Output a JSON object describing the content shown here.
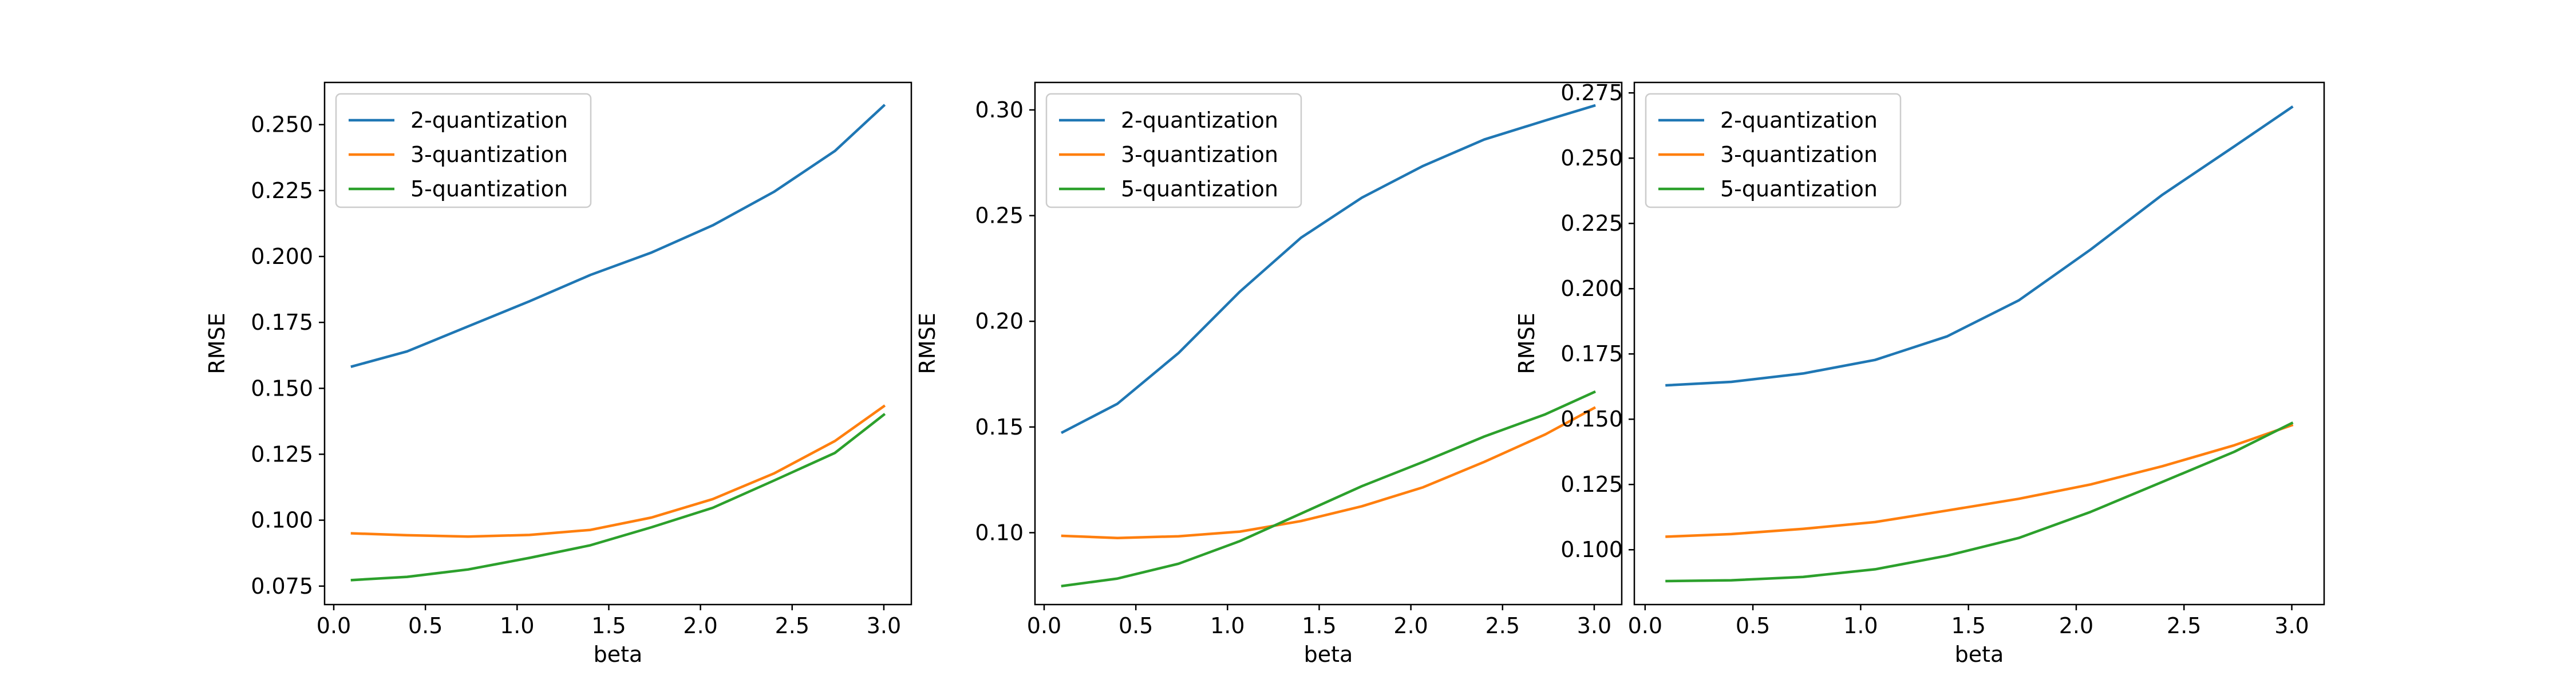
{
  "chart_data": [
    {
      "type": "line",
      "xlabel": "beta",
      "ylabel": "RMSE",
      "xlim": [
        -0.05,
        3.15
      ],
      "ylim": [
        0.068,
        0.266
      ],
      "xticks": [
        0.0,
        0.5,
        1.0,
        1.5,
        2.0,
        2.5,
        3.0
      ],
      "xtick_labels": [
        "0.0",
        "0.5",
        "1.0",
        "1.5",
        "2.0",
        "2.5",
        "3.0"
      ],
      "yticks": [
        0.075,
        0.1,
        0.125,
        0.15,
        0.175,
        0.2,
        0.225,
        0.25
      ],
      "ytick_labels": [
        "0.075",
        "0.100",
        "0.125",
        "0.150",
        "0.175",
        "0.200",
        "0.225",
        "0.250"
      ],
      "legend_position": "upper-left",
      "grid": false,
      "x": [
        0.1,
        0.4,
        0.733,
        1.067,
        1.4,
        1.733,
        2.067,
        2.4,
        2.733,
        3.0
      ],
      "series": [
        {
          "name": "2-quantization",
          "color": "#1f77b4",
          "values": [
            0.1583,
            0.164,
            0.1735,
            0.183,
            0.193,
            0.2015,
            0.2118,
            0.2245,
            0.24,
            0.2572
          ]
        },
        {
          "name": "3-quantization",
          "color": "#ff7f0e",
          "values": [
            0.095,
            0.0943,
            0.0938,
            0.0944,
            0.0963,
            0.101,
            0.108,
            0.1177,
            0.13,
            0.1432
          ]
        },
        {
          "name": "5-quantization",
          "color": "#2ca02c",
          "values": [
            0.0773,
            0.0785,
            0.0813,
            0.0857,
            0.0905,
            0.0973,
            0.1047,
            0.115,
            0.1255,
            0.14
          ]
        }
      ]
    },
    {
      "type": "line",
      "xlabel": "beta",
      "ylabel": "RMSE",
      "xlim": [
        -0.05,
        3.15
      ],
      "ylim": [
        0.066,
        0.313
      ],
      "xticks": [
        0.0,
        0.5,
        1.0,
        1.5,
        2.0,
        2.5,
        3.0
      ],
      "xtick_labels": [
        "0.0",
        "0.5",
        "1.0",
        "1.5",
        "2.0",
        "2.5",
        "3.0"
      ],
      "yticks": [
        0.1,
        0.15,
        0.2,
        0.25,
        0.3
      ],
      "ytick_labels": [
        "0.10",
        "0.15",
        "0.20",
        "0.25",
        "0.30"
      ],
      "legend_position": "upper-left",
      "grid": false,
      "x": [
        0.1,
        0.4,
        0.733,
        1.067,
        1.4,
        1.733,
        2.067,
        2.4,
        2.733,
        3.0
      ],
      "series": [
        {
          "name": "2-quantization",
          "color": "#1f77b4",
          "values": [
            0.1475,
            0.161,
            0.185,
            0.214,
            0.2395,
            0.2585,
            0.2735,
            0.286,
            0.295,
            0.302
          ]
        },
        {
          "name": "3-quantization",
          "color": "#ff7f0e",
          "values": [
            0.0985,
            0.0975,
            0.0983,
            0.1005,
            0.1055,
            0.1125,
            0.1215,
            0.1335,
            0.1465,
            0.159
          ]
        },
        {
          "name": "5-quantization",
          "color": "#2ca02c",
          "values": [
            0.0748,
            0.0783,
            0.0853,
            0.096,
            0.109,
            0.122,
            0.1335,
            0.1455,
            0.156,
            0.1665
          ]
        }
      ]
    },
    {
      "type": "line",
      "xlabel": "beta",
      "ylabel": "RMSE",
      "xlim": [
        -0.05,
        3.15
      ],
      "ylim": [
        0.079,
        0.279
      ],
      "xticks": [
        0.0,
        0.5,
        1.0,
        1.5,
        2.0,
        2.5,
        3.0
      ],
      "xtick_labels": [
        "0.0",
        "0.5",
        "1.0",
        "1.5",
        "2.0",
        "2.5",
        "3.0"
      ],
      "yticks": [
        0.1,
        0.125,
        0.15,
        0.175,
        0.2,
        0.225,
        0.25,
        0.275
      ],
      "ytick_labels": [
        "0.100",
        "0.125",
        "0.150",
        "0.175",
        "0.200",
        "0.225",
        "0.250",
        "0.275"
      ],
      "legend_position": "upper-left",
      "grid": false,
      "x": [
        0.1,
        0.4,
        0.733,
        1.067,
        1.4,
        1.733,
        2.067,
        2.4,
        2.733,
        3.0
      ],
      "series": [
        {
          "name": "2-quantization",
          "color": "#1f77b4",
          "values": [
            0.163,
            0.1643,
            0.1675,
            0.1727,
            0.1817,
            0.1955,
            0.215,
            0.236,
            0.2545,
            0.2695
          ]
        },
        {
          "name": "3-quantization",
          "color": "#ff7f0e",
          "values": [
            0.105,
            0.106,
            0.108,
            0.1106,
            0.115,
            0.1195,
            0.125,
            0.132,
            0.14,
            0.1477
          ]
        },
        {
          "name": "5-quantization",
          "color": "#2ca02c",
          "values": [
            0.088,
            0.0883,
            0.0896,
            0.0925,
            0.0977,
            0.1045,
            0.1145,
            0.126,
            0.1375,
            0.1485
          ]
        }
      ]
    }
  ]
}
